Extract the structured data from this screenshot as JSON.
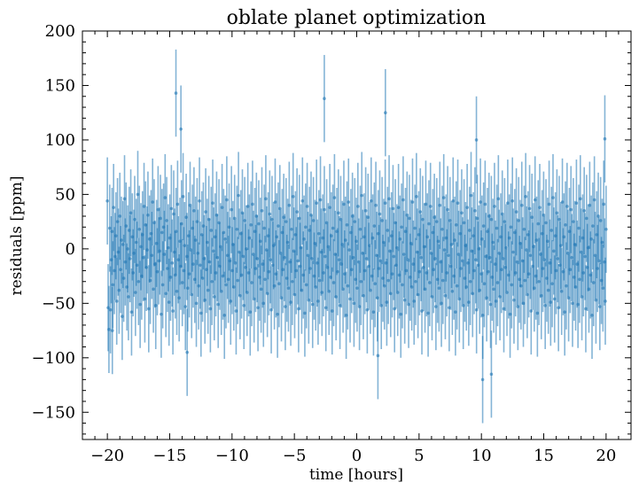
{
  "chart_data": {
    "type": "scatter",
    "title": "oblate planet optimization",
    "xlabel": "time [hours]",
    "ylabel": "residuals [ppm]",
    "xlim": [
      -22,
      22
    ],
    "ylim": [
      -175,
      200
    ],
    "x_ticks": [
      -20,
      -15,
      -10,
      -5,
      0,
      5,
      10,
      15,
      20
    ],
    "y_ticks": [
      -150,
      -100,
      -50,
      0,
      50,
      100,
      150,
      200
    ],
    "x_tick_labels": [
      "−20",
      "−15",
      "−10",
      "−5",
      "0",
      "5",
      "10",
      "15",
      "20"
    ],
    "y_tick_labels": [
      "−150",
      "−100",
      "−50",
      "0",
      "50",
      "100",
      "150",
      "200"
    ],
    "x_minor_step": 1,
    "y_minor_step": 10,
    "tick_direction": "in",
    "grid": false,
    "marker_color": "#1f77b4",
    "errorbar_halfwidth_ppm": 40,
    "points": {
      "x_start": -20,
      "x_end": 20,
      "count": 600,
      "notable": [
        {
          "x": -14.5,
          "y": 143
        },
        {
          "x": -14.1,
          "y": 110
        },
        {
          "x": -2.6,
          "y": 138
        },
        {
          "x": 2.3,
          "y": 125
        },
        {
          "x": 9.6,
          "y": 100
        },
        {
          "x": 19.9,
          "y": 101
        },
        {
          "x": 10.1,
          "y": -120
        },
        {
          "x": 10.8,
          "y": -115
        },
        {
          "x": -13.6,
          "y": -95
        },
        {
          "x": -19.6,
          "y": -75
        },
        {
          "x": 1.7,
          "y": -98
        }
      ],
      "y_values": [
        44,
        -54,
        -74,
        19,
        -56,
        -10,
        16,
        -33,
        38,
        -20,
        -7,
        12,
        -48,
        25,
        -3,
        -38,
        30,
        -19,
        8,
        -62,
        4,
        -27,
        46,
        -12,
        21,
        -35,
        0,
        -44,
        17,
        -9,
        33,
        -58,
        11,
        -22,
        -4,
        27,
        -40,
        6,
        -15,
        50,
        -30,
        18,
        -51,
        2,
        -25,
        13,
        -8,
        39,
        -46,
        22,
        -17,
        -1,
        31,
        -55,
        9,
        -29,
        14,
        -6,
        43,
        -37,
        24,
        -14,
        -52,
        5,
        -21,
        36,
        -11,
        -2,
        28,
        -60,
        15,
        -33,
        20,
        -5,
        47,
        -41,
        26,
        -18,
        1,
        -49,
        10,
        -26,
        37,
        -13,
        -57,
        32,
        -3,
        -24,
        16,
        -39,
        41,
        -10,
        -45,
        7,
        -16,
        23,
        -31,
        48,
        -20,
        3,
        -53,
        29,
        -7,
        -36,
        12,
        -23,
        40,
        -1,
        -42,
        19,
        -14,
        35,
        -28,
        8,
        -50,
        25,
        -4,
        -34,
        44,
        -15,
        -59,
        13,
        -27,
        21,
        -9,
        -47,
        34,
        -19,
        6,
        -38,
        27,
        -12,
        -55,
        17,
        -30,
        42,
        -2,
        -44,
        11,
        -22,
        31,
        -8,
        -51,
        24,
        -16,
        2,
        -39,
        38,
        -25,
        15,
        -61,
        9,
        -33,
        45,
        -6,
        -28,
        20,
        -11,
        -48,
        36,
        -20,
        4,
        -35,
        28,
        -13,
        -57,
        18,
        -29,
        49,
        -3,
        -43,
        14,
        -24,
        33,
        -7,
        -52,
        26,
        -17,
        0,
        -40,
        39,
        -22,
        10,
        -58,
        22,
        -31,
        41,
        -5,
        -46,
        16,
        -18,
        30,
        -9,
        -54,
        23,
        -26,
        7,
        -37,
        35,
        -14,
        -50,
        19,
        -28,
        46,
        -1,
        -41,
        12,
        -21,
        32,
        -10,
        -56,
        27,
        -15,
        3,
        -34,
        43,
        -23,
        11,
        -60,
        21,
        -32,
        37,
        -4,
        -45,
        15,
        -19,
        29,
        -8,
        -53,
        25,
        -27,
        6,
        -36,
        40,
        -12,
        -49,
        18,
        -30,
        48,
        -2,
        -42,
        13,
        -20,
        34,
        -11,
        -55,
        28,
        -16,
        1,
        -38,
        44,
        -24,
        9,
        -59,
        20,
        -33,
        39,
        -6,
        -47,
        17,
        -18,
        31,
        -9,
        -51,
        26,
        -25,
        5,
        -35,
        42,
        -13,
        -48,
        14,
        -29,
        45,
        -3,
        -40,
        10,
        -22,
        36,
        -7,
        -54,
        24,
        -17,
        2,
        -39,
        38,
        -26,
        12,
        -57,
        19,
        -31,
        47,
        -5,
        -44,
        16,
        -21,
        33,
        -10,
        -52,
        27,
        -14,
        4,
        -37,
        41,
        -23,
        8,
        -61,
        22,
        -34,
        43,
        -1,
        -46,
        15,
        -19,
        30,
        -8,
        -50,
        25,
        -28,
        7,
        -36,
        39,
        -12,
        -53,
        18,
        -30,
        49,
        -4,
        -43,
        11,
        -20,
        35,
        -9,
        -56,
        29,
        -16,
        3,
        -38,
        44,
        -25,
        10,
        -58,
        21,
        -32,
        40,
        -6,
        -45,
        14,
        -18,
        32,
        -11,
        -52,
        26,
        -27,
        6,
        -34,
        42,
        -13,
        -49,
        17,
        -29,
        46,
        -2,
        -41,
        12,
        -23,
        37,
        -7,
        -55,
        24,
        -15,
        1,
        -40,
        38,
        -24,
        9,
        -60,
        20,
        -33,
        45,
        -5,
        -47,
        16,
        -20,
        31,
        -10,
        -51,
        28,
        -26,
        5,
        -35,
        43,
        -14,
        -48,
        19,
        -30,
        48,
        -3,
        -42,
        13,
        -21,
        34,
        -8,
        -57,
        27,
        -17,
        2,
        -37,
        41,
        -22,
        11,
        -59,
        23,
        -31,
        39,
        -4,
        -44,
        15,
        -19,
        29,
        -9,
        -53,
        25,
        -28,
        7,
        -36,
        40,
        -12,
        -50,
        18,
        -29,
        47,
        -1,
        -43,
        10,
        -22,
        36,
        -6,
        -54,
        26,
        -16,
        4,
        -39,
        44,
        -25,
        8,
        -58,
        22,
        -34,
        42,
        -5,
        -46,
        14,
        -18,
        33,
        -11,
        -52,
        24,
        -27,
        3,
        -35,
        38,
        -13,
        -49,
        17,
        -30,
        49,
        -2,
        -41,
        12,
        -20,
        35,
        -10,
        -56,
        28,
        -15,
        0,
        -38,
        43,
        -23,
        9,
        -61,
        21,
        -32,
        41,
        -7,
        -45,
        16,
        -21,
        30,
        -8,
        -51,
        27,
        -26,
        6,
        -37,
        39,
        -14,
        -48,
        19,
        -31,
        46,
        -4,
        -44,
        11,
        -19,
        32,
        -9,
        -55,
        25,
        -17,
        1,
        -40,
        42,
        -24,
        10,
        -60,
        20,
        -33,
        44,
        -3,
        -47,
        15,
        -22,
        34,
        -12,
        -53,
        26,
        -28,
        5,
        -34,
        40,
        -11,
        -50,
        18,
        -29,
        48,
        -1,
        -42,
        13,
        -23,
        37,
        -6,
        -57,
        29,
        -16,
        2,
        -36,
        45,
        -25,
        8,
        -59,
        23,
        -30,
        38,
        -5,
        -43,
        14,
        -18,
        31,
        -10,
        -52,
        24,
        -27,
        7,
        -38,
        41,
        -13,
        -49,
        17,
        -32,
        47,
        -2,
        -46,
        12,
        -20,
        33,
        -9,
        -54,
        27,
        -15,
        3,
        -39,
        43,
        -21,
        11,
        -58,
        22,
        -34,
        39,
        -4,
        -45,
        16,
        -19,
        36,
        -8,
        -50,
        25,
        -26,
        4,
        -35,
        42,
        -14,
        -51,
        19,
        -28,
        46,
        -3,
        -44,
        10,
        -22,
        35,
        -7,
        -55,
        28,
        -17,
        1,
        -37,
        40,
        -24,
        9,
        -61,
        21,
        -31,
        45,
        -6,
        -47,
        13,
        -18,
        30,
        -11,
        -53,
        26,
        -29,
        6,
        -36,
        41,
        -12,
        -48,
        18
      ]
    }
  }
}
